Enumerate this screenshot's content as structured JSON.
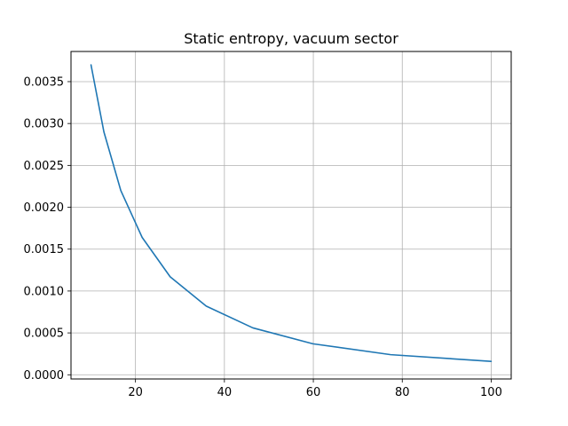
{
  "chart_data": {
    "type": "line",
    "title": "Static entropy, vacuum sector",
    "xlabel": "",
    "ylabel": "",
    "xlim": [
      5.5,
      104.5
    ],
    "ylim": [
      -5e-05,
      0.00386
    ],
    "grid": true,
    "x_ticks": [
      20,
      40,
      60,
      80,
      100
    ],
    "x_tick_labels": [
      "20",
      "40",
      "60",
      "80",
      "100"
    ],
    "y_ticks": [
      0.0,
      0.0005,
      0.001,
      0.0015,
      0.002,
      0.0025,
      0.003,
      0.0035
    ],
    "y_tick_labels": [
      "0.0000",
      "0.0005",
      "0.0010",
      "0.0015",
      "0.0020",
      "0.0025",
      "0.0030",
      "0.0035"
    ],
    "series": [
      {
        "color": "#1f77b4",
        "x": [
          10,
          12.9,
          16.7,
          21.5,
          27.8,
          35.9,
          46.4,
          59.9,
          77.4,
          100
        ],
        "y": [
          0.0037,
          0.0029,
          0.0022,
          0.00164,
          0.00117,
          0.00082,
          0.00056,
          0.00037,
          0.00024,
          0.00016
        ]
      }
    ]
  }
}
